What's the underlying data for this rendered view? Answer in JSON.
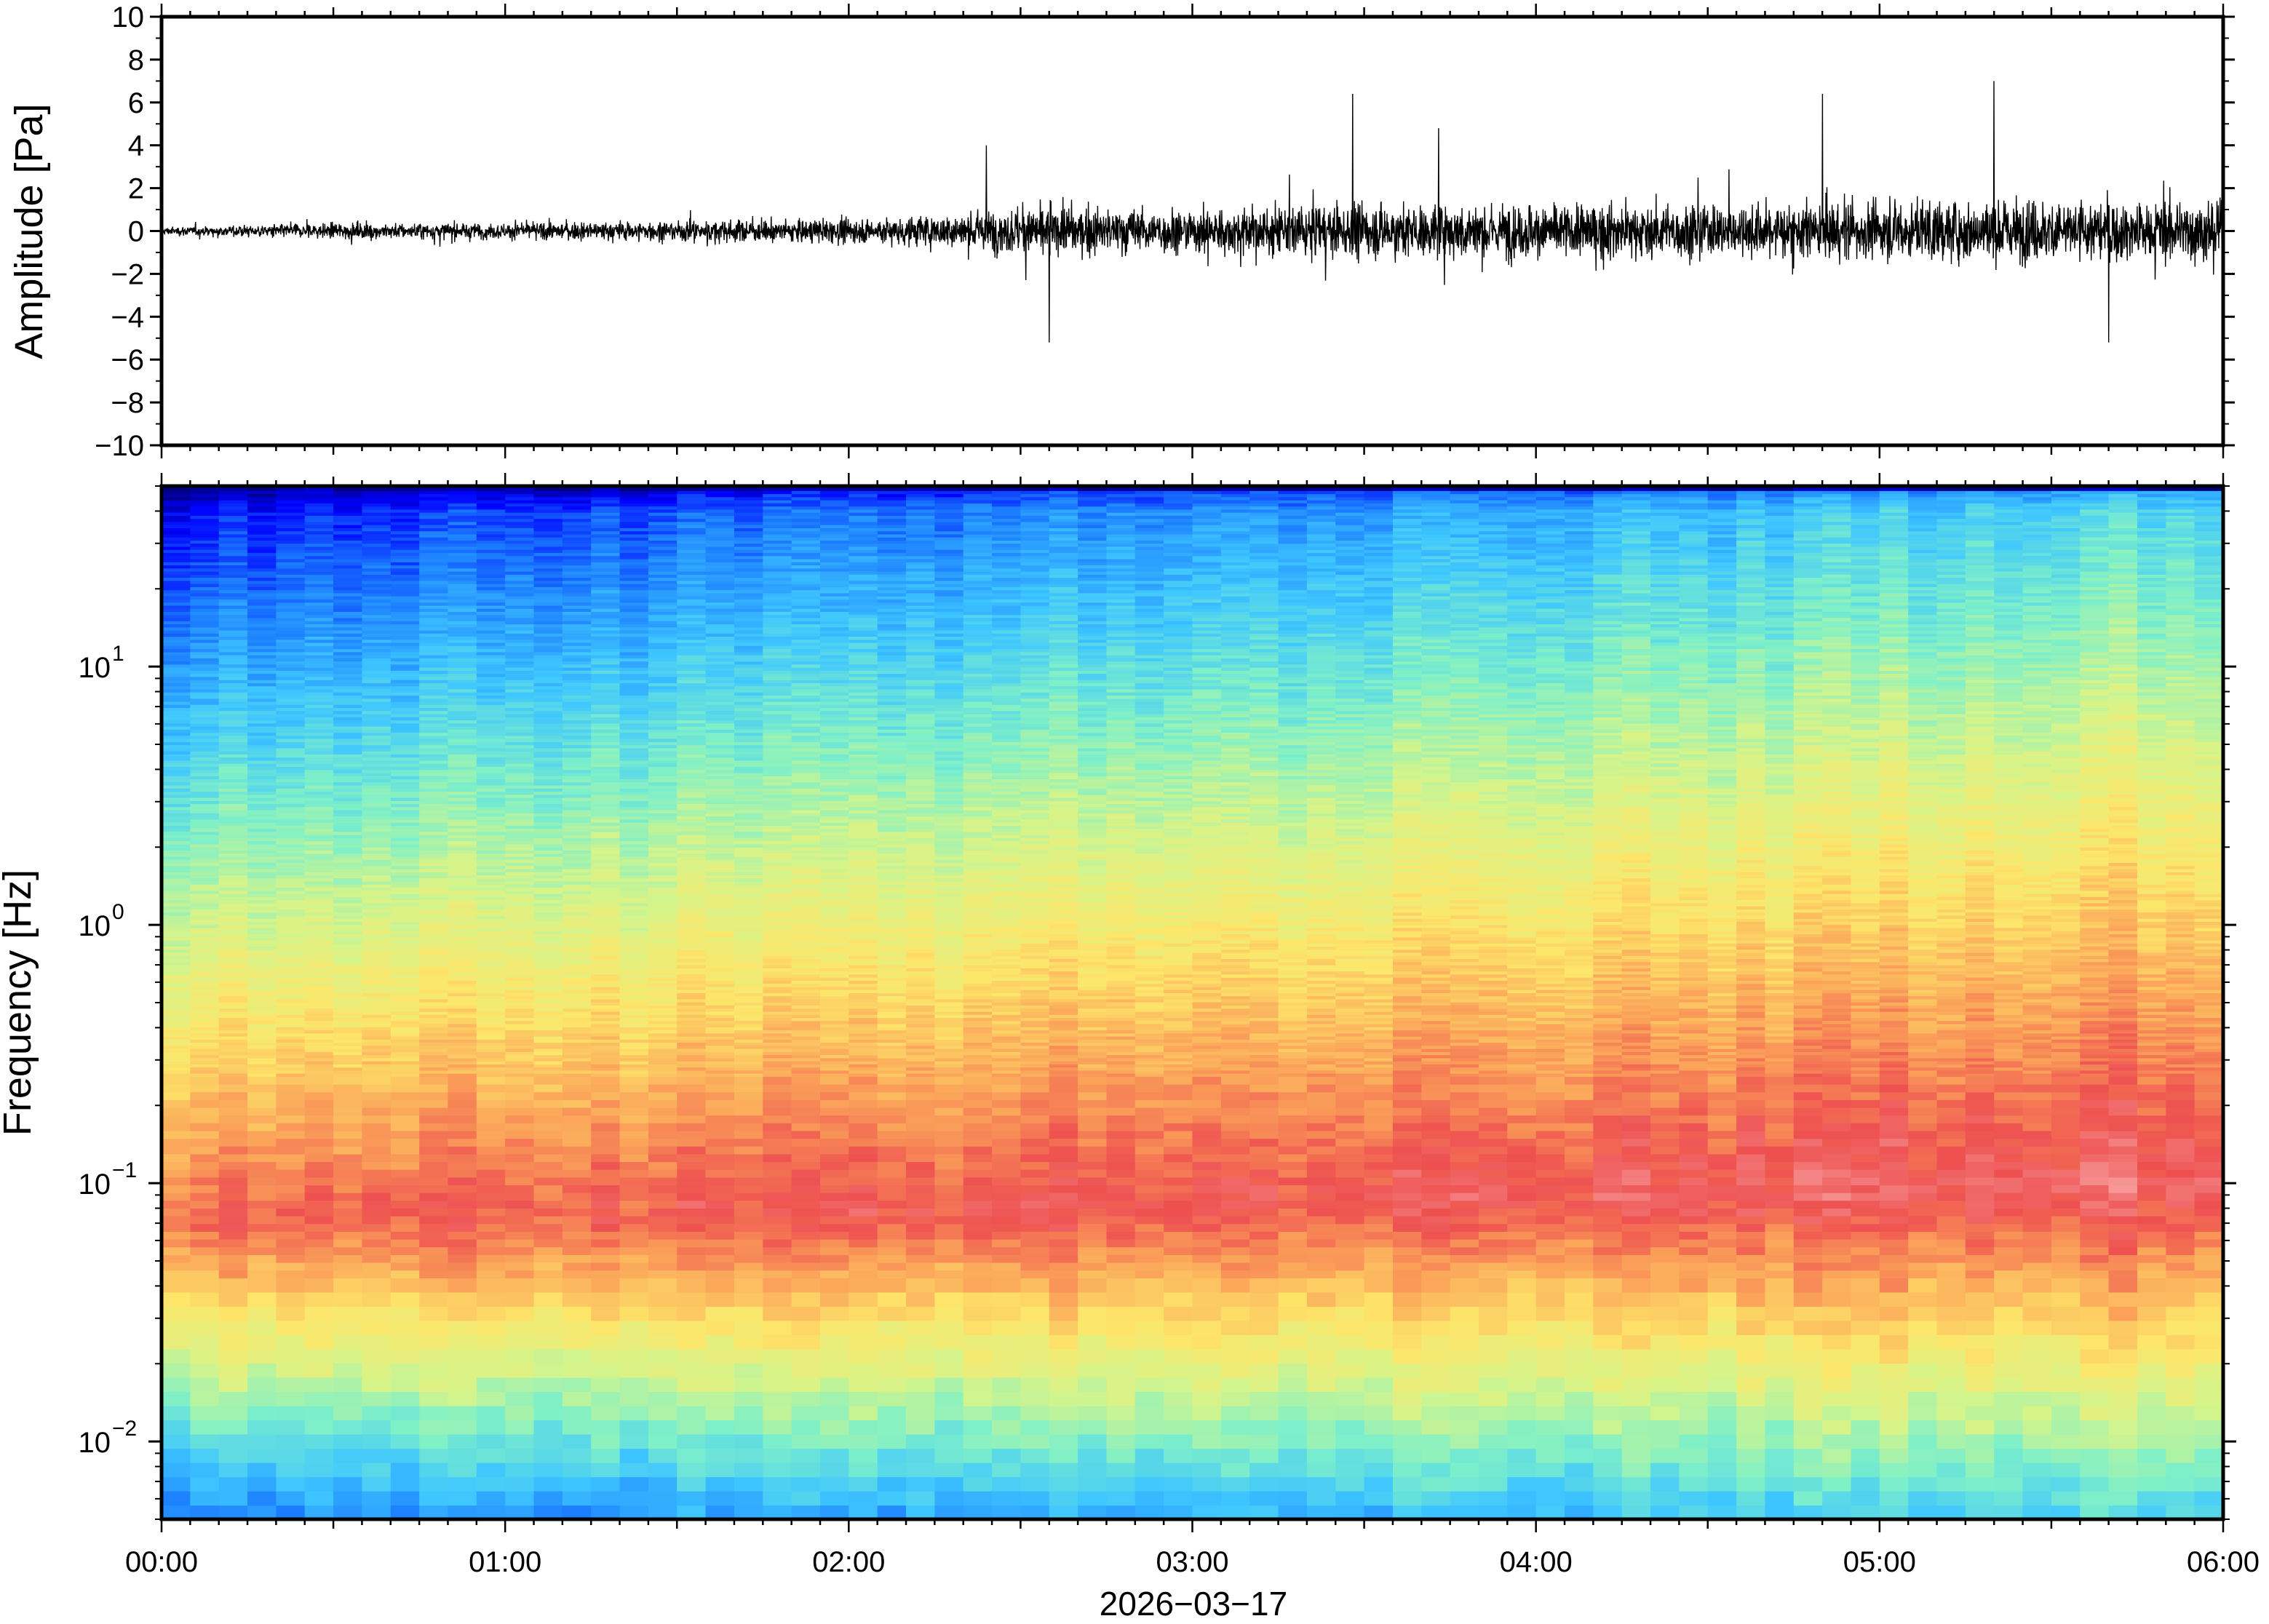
{
  "chart_data": [
    {
      "type": "line",
      "ylabel": "Amplitude [Pa]",
      "ylim": [
        -10,
        10
      ],
      "yticks": [
        10,
        8,
        6,
        4,
        2,
        0,
        -2,
        -4,
        -6,
        -8,
        -10
      ],
      "ytick_labels": [
        "10",
        "8",
        "6",
        "4",
        "2",
        "0",
        "−2",
        "−4",
        "−6",
        "−8",
        "−10"
      ],
      "xlim": [
        "00:00",
        "06:00"
      ],
      "grid": false,
      "series": [
        {
          "color": "#000000",
          "envelope_hours": [
            0.0,
            0.5,
            1.0,
            1.5,
            2.0,
            2.3,
            2.5,
            3.0,
            3.5,
            4.0,
            4.5,
            5.0,
            5.5,
            6.0
          ],
          "typical_amplitude_pa": [
            0.3,
            0.6,
            0.6,
            0.8,
            0.9,
            1.3,
            1.8,
            1.7,
            2.0,
            2.1,
            2.0,
            2.2,
            2.4,
            2.2
          ],
          "peaks": [
            {
              "time": "02:24",
              "value": 4.0
            },
            {
              "time": "02:35",
              "value": -5.2
            },
            {
              "time": "03:28",
              "value": 6.4
            },
            {
              "time": "03:43",
              "value": 4.8
            },
            {
              "time": "04:50",
              "value": 6.4
            },
            {
              "time": "05:20",
              "value": 7.0
            },
            {
              "time": "05:40",
              "value": -5.2
            }
          ]
        }
      ]
    },
    {
      "type": "heatmap",
      "ylabel": "Frequency [Hz]",
      "xlabel": "2026−03−17",
      "yscale": "log",
      "ylim": [
        0.005,
        50
      ],
      "yticks": [
        {
          "value": 10,
          "base": "10",
          "exp": "1"
        },
        {
          "value": 1,
          "base": "10",
          "exp": "0"
        },
        {
          "value": 0.1,
          "base": "10",
          "exp": "−1"
        },
        {
          "value": 0.01,
          "base": "10",
          "exp": "−2"
        }
      ],
      "categories": [
        "00:00",
        "01:00",
        "02:00",
        "03:00",
        "04:00",
        "05:00",
        "06:00"
      ],
      "xlim": [
        "00:00",
        "06:00"
      ],
      "colormap": [
        "#00007f",
        "#0000ff",
        "#1b7bff",
        "#3ec6ff",
        "#7ff0c8",
        "#d6f48a",
        "#fde66a",
        "#fba45a",
        "#ee5050",
        "#f7a0a0"
      ],
      "colorbar": false,
      "grid": false
    }
  ]
}
